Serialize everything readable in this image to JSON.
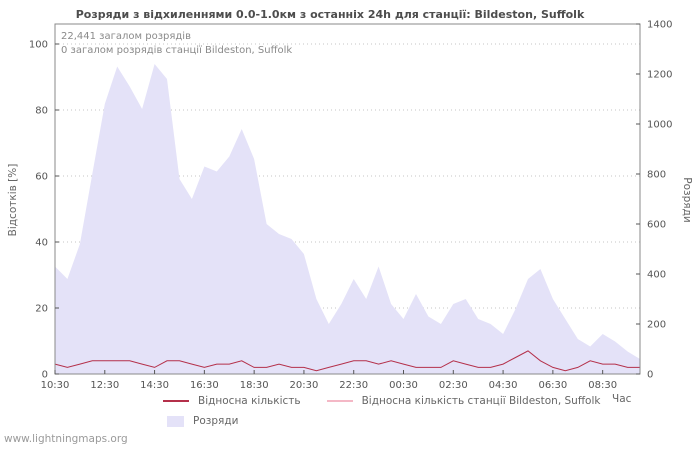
{
  "watermark": "www.lightningmaps.org",
  "chart_data": {
    "type": "area",
    "title": "Розряди з відхиленнями 0.0-1.0км з останніх 24h для станції: Bildeston, Suffolk",
    "xlabel": "Час",
    "ylabel_left": "Відсотків  [%]",
    "ylabel_right": "Розряди",
    "annotations": [
      "22,441 загалом розрядів",
      "0 загалом розрядів станції Bildeston, Suffolk"
    ],
    "x_ticks": [
      "10:30",
      "12:30",
      "14:30",
      "16:30",
      "18:30",
      "20:30",
      "22:30",
      "00:30",
      "02:30",
      "04:30",
      "06:30",
      "08:30"
    ],
    "x_step_minutes": 30,
    "ylim_left": [
      0,
      100
    ],
    "ylim_right": [
      0,
      1400
    ],
    "yticks_left": [
      0,
      20,
      40,
      60,
      80,
      100
    ],
    "yticks_right": [
      0,
      200,
      400,
      600,
      800,
      1000,
      1200,
      1400
    ],
    "grid": "horizontal-dotted",
    "legend_position": "bottom",
    "series": [
      {
        "name": "Розряди",
        "type": "area",
        "axis": "right",
        "color": "#e4e2f8",
        "values": [
          430,
          380,
          520,
          800,
          1080,
          1230,
          1150,
          1060,
          1240,
          1180,
          780,
          700,
          830,
          810,
          870,
          980,
          860,
          600,
          560,
          540,
          480,
          300,
          200,
          280,
          380,
          300,
          430,
          280,
          220,
          320,
          230,
          200,
          280,
          300,
          220,
          200,
          160,
          260,
          380,
          420,
          300,
          220,
          140,
          110,
          160,
          130,
          90,
          60
        ]
      },
      {
        "name": "Відносна кількість",
        "type": "line",
        "axis": "left",
        "color": "#b4304a",
        "values": [
          3,
          2,
          3,
          4,
          4,
          4,
          4,
          3,
          2,
          4,
          4,
          3,
          2,
          3,
          3,
          4,
          2,
          2,
          3,
          2,
          2,
          1,
          2,
          3,
          4,
          4,
          3,
          4,
          3,
          2,
          2,
          2,
          4,
          3,
          2,
          2,
          3,
          5,
          7,
          4,
          2,
          1,
          2,
          4,
          3,
          3,
          2,
          2
        ]
      },
      {
        "name": "Відносна кількість станції Bildeston, Suffolk",
        "type": "line",
        "axis": "left",
        "color": "#f4b8c6",
        "values": [
          0,
          0,
          0,
          0,
          0,
          0,
          0,
          0,
          0,
          0,
          0,
          0,
          0,
          0,
          0,
          0,
          0,
          0,
          0,
          0,
          0,
          0,
          0,
          0,
          0,
          0,
          0,
          0,
          0,
          0,
          0,
          0,
          0,
          0,
          0,
          0,
          0,
          0,
          0,
          0,
          0,
          0,
          0,
          0,
          0,
          0,
          0,
          0
        ]
      }
    ]
  }
}
